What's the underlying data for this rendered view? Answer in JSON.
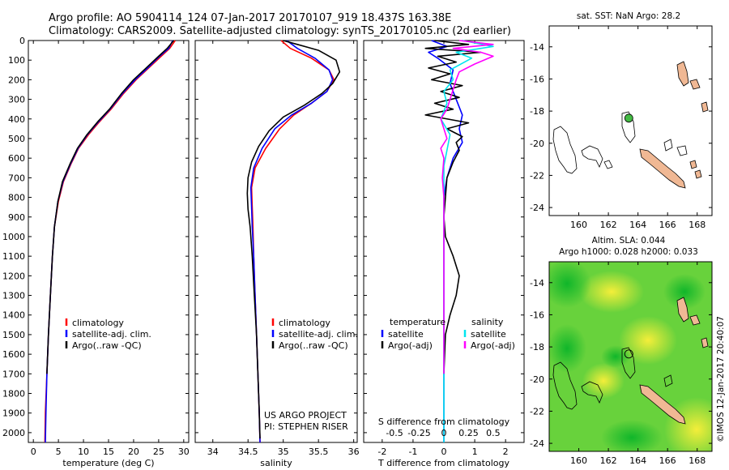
{
  "header": {
    "line1": "Argo profile: AO 5904114_124 07-Jan-2017 20170107_919 18.437S 163.38E",
    "line2": "Climatology: CARS2009. Satellite-adjusted climatology: synTS_20170105.nc (2d earlier)"
  },
  "colors": {
    "climatology": "#ff0000",
    "satellite": "#0000ff",
    "argo": "#000000",
    "sal_satellite": "#00e5ee",
    "sal_argo": "#ff00ff",
    "land": "#f0b894",
    "float": "#44bb44"
  },
  "depth_axis": {
    "ylim": [
      0,
      2050
    ],
    "ticks": [
      0,
      100,
      200,
      300,
      400,
      500,
      600,
      700,
      800,
      900,
      1000,
      1100,
      1200,
      1300,
      1400,
      1500,
      1600,
      1700,
      1800,
      1900,
      2000
    ]
  },
  "chart_data": [
    {
      "id": "temperature",
      "type": "line",
      "xlabel": "temperature (deg C)",
      "xlim": [
        -1,
        31
      ],
      "xticks": [
        0,
        5,
        10,
        15,
        20,
        25,
        30
      ],
      "legend": [
        "climatology",
        "satellite-adj. clim.",
        "Argo(..raw -QC)"
      ],
      "series": [
        {
          "name": "climatology",
          "color": "#ff0000",
          "points": [
            [
              28.3,
              0
            ],
            [
              27.2,
              40
            ],
            [
              25.5,
              80
            ],
            [
              23.0,
              140
            ],
            [
              20.5,
              200
            ],
            [
              18.0,
              270
            ],
            [
              15.5,
              350
            ],
            [
              13.0,
              420
            ],
            [
              11.0,
              480
            ],
            [
              9.0,
              550
            ],
            [
              7.5,
              630
            ],
            [
              6.0,
              720
            ],
            [
              5.0,
              820
            ],
            [
              4.2,
              950
            ],
            [
              3.8,
              1100
            ],
            [
              3.4,
              1300
            ],
            [
              3.0,
              1500
            ],
            [
              2.7,
              1700
            ],
            [
              2.4,
              1900
            ],
            [
              2.3,
              2050
            ]
          ]
        },
        {
          "name": "satellite-adj. clim.",
          "color": "#0000ff",
          "points": [
            [
              27.8,
              0
            ],
            [
              27.0,
              40
            ],
            [
              25.2,
              80
            ],
            [
              22.8,
              140
            ],
            [
              20.3,
              200
            ],
            [
              17.8,
              270
            ],
            [
              15.3,
              350
            ],
            [
              12.8,
              420
            ],
            [
              10.8,
              480
            ],
            [
              8.9,
              550
            ],
            [
              7.4,
              630
            ],
            [
              5.9,
              720
            ],
            [
              4.9,
              820
            ],
            [
              4.2,
              950
            ],
            [
              3.8,
              1100
            ],
            [
              3.4,
              1300
            ],
            [
              3.0,
              1500
            ],
            [
              2.7,
              1700
            ],
            [
              2.5,
              1900
            ],
            [
              2.4,
              2050
            ]
          ]
        },
        {
          "name": "Argo(..raw -QC)",
          "color": "#000000",
          "points": [
            [
              28.0,
              0
            ],
            [
              26.7,
              40
            ],
            [
              25.0,
              80
            ],
            [
              22.5,
              140
            ],
            [
              20.0,
              200
            ],
            [
              17.6,
              270
            ],
            [
              15.2,
              350
            ],
            [
              13.0,
              410
            ],
            [
              10.7,
              480
            ],
            [
              8.8,
              550
            ],
            [
              7.3,
              630
            ],
            [
              5.8,
              720
            ],
            [
              4.9,
              820
            ],
            [
              4.2,
              950
            ],
            [
              3.8,
              1100
            ],
            [
              3.4,
              1300
            ],
            [
              3.0,
              1500
            ],
            [
              2.7,
              1700
            ]
          ]
        }
      ]
    },
    {
      "id": "salinity",
      "type": "line",
      "xlabel": "salinity",
      "xlim": [
        33.75,
        36.05
      ],
      "xticks": [
        34,
        34.5,
        35,
        35.5,
        36
      ],
      "legend": [
        "climatology",
        "satellite-adj. clim.",
        "Argo(..raw -QC)"
      ],
      "annotation": [
        "US ARGO PROJECT",
        "PI: STEPHEN RISER"
      ],
      "series": [
        {
          "name": "climatology",
          "color": "#ff0000",
          "points": [
            [
              34.97,
              0
            ],
            [
              35.1,
              40
            ],
            [
              35.4,
              90
            ],
            [
              35.65,
              150
            ],
            [
              35.72,
              200
            ],
            [
              35.62,
              260
            ],
            [
              35.4,
              320
            ],
            [
              35.15,
              380
            ],
            [
              34.95,
              450
            ],
            [
              34.75,
              550
            ],
            [
              34.6,
              650
            ],
            [
              34.55,
              750
            ],
            [
              34.56,
              850
            ],
            [
              34.57,
              950
            ],
            [
              34.58,
              1100
            ],
            [
              34.6,
              1300
            ],
            [
              34.62,
              1500
            ],
            [
              34.64,
              1700
            ],
            [
              34.66,
              1900
            ],
            [
              34.67,
              2050
            ]
          ]
        },
        {
          "name": "satellite-adj. clim.",
          "color": "#0000ff",
          "points": [
            [
              35.05,
              0
            ],
            [
              35.2,
              40
            ],
            [
              35.45,
              90
            ],
            [
              35.65,
              150
            ],
            [
              35.7,
              200
            ],
            [
              35.62,
              260
            ],
            [
              35.4,
              320
            ],
            [
              35.12,
              380
            ],
            [
              34.88,
              450
            ],
            [
              34.7,
              550
            ],
            [
              34.58,
              650
            ],
            [
              34.54,
              750
            ],
            [
              34.55,
              850
            ],
            [
              34.56,
              950
            ],
            [
              34.58,
              1100
            ],
            [
              34.6,
              1300
            ],
            [
              34.62,
              1500
            ],
            [
              34.64,
              1700
            ],
            [
              34.66,
              1900
            ],
            [
              34.67,
              2050
            ]
          ]
        },
        {
          "name": "Argo(..raw -QC)",
          "color": "#000000",
          "points": [
            [
              35.0,
              0
            ],
            [
              35.2,
              20
            ],
            [
              35.5,
              50
            ],
            [
              35.75,
              100
            ],
            [
              35.8,
              160
            ],
            [
              35.7,
              220
            ],
            [
              35.55,
              270
            ],
            [
              35.3,
              330
            ],
            [
              35.0,
              390
            ],
            [
              34.8,
              460
            ],
            [
              34.65,
              540
            ],
            [
              34.55,
              620
            ],
            [
              34.5,
              700
            ],
            [
              34.49,
              780
            ],
            [
              34.5,
              860
            ],
            [
              34.53,
              950
            ],
            [
              34.56,
              1100
            ],
            [
              34.59,
              1300
            ],
            [
              34.62,
              1500
            ],
            [
              34.64,
              1700
            ],
            [
              34.66,
              1900
            ],
            [
              34.67,
              2030
            ]
          ]
        }
      ]
    },
    {
      "id": "difference",
      "type": "line",
      "xlabel": "T difference from climatology",
      "xlim": [
        -2.6,
        2.6
      ],
      "xticks": [
        -2,
        -1,
        0,
        1,
        2
      ],
      "top_label": "S difference from climatology",
      "top_ticks": [
        {
          "label": "-0.5",
          "t": -1.6
        },
        {
          "label": "-0.25",
          "t": -0.8
        },
        {
          "label": "0",
          "t": 0
        },
        {
          "label": "0.25",
          "t": 0.8
        },
        {
          "label": "0.5",
          "t": 1.6
        }
      ],
      "legend_temperature_title": "temperature",
      "legend_salinity_title": "salinity",
      "legend": [
        "satellite",
        "Argo(-adj)",
        "satellite",
        "Argo(-adj)"
      ],
      "series": [
        {
          "name": "T satellite",
          "color": "#0000ff",
          "points": [
            [
              -0.4,
              0
            ],
            [
              0.1,
              30
            ],
            [
              -0.5,
              60
            ],
            [
              -0.2,
              90
            ],
            [
              0.3,
              150
            ],
            [
              0.2,
              220
            ],
            [
              0.4,
              300
            ],
            [
              0.6,
              380
            ],
            [
              0.5,
              450
            ],
            [
              0.6,
              520
            ],
            [
              0.3,
              600
            ],
            [
              0.1,
              700
            ],
            [
              0.0,
              800
            ],
            [
              0.0,
              1000
            ],
            [
              0.0,
              1500
            ],
            [
              0.0,
              2050
            ]
          ]
        },
        {
          "name": "T Argo(-adj)",
          "color": "#000000",
          "points": [
            [
              -0.3,
              0
            ],
            [
              0.8,
              20
            ],
            [
              -0.6,
              40
            ],
            [
              1.2,
              60
            ],
            [
              -0.2,
              80
            ],
            [
              0.4,
              110
            ],
            [
              -0.5,
              140
            ],
            [
              0.2,
              170
            ],
            [
              -0.4,
              200
            ],
            [
              0.6,
              230
            ],
            [
              -0.1,
              260
            ],
            [
              0.5,
              290
            ],
            [
              -0.3,
              320
            ],
            [
              0.3,
              350
            ],
            [
              -0.6,
              380
            ],
            [
              0.8,
              420
            ],
            [
              0.1,
              450
            ],
            [
              0.6,
              490
            ],
            [
              0.4,
              520
            ],
            [
              0.5,
              560
            ],
            [
              0.3,
              620
            ],
            [
              0.1,
              700
            ],
            [
              0.05,
              800
            ],
            [
              0.0,
              900
            ],
            [
              0.05,
              1000
            ],
            [
              0.3,
              1100
            ],
            [
              0.5,
              1200
            ],
            [
              0.4,
              1300
            ],
            [
              0.2,
              1400
            ],
            [
              0.05,
              1500
            ],
            [
              0.0,
              1700
            ]
          ]
        },
        {
          "name": "S satellite",
          "color": "#00e5ee",
          "points": [
            [
              0.6,
              0
            ],
            [
              1.6,
              30
            ],
            [
              0.4,
              60
            ],
            [
              0.9,
              90
            ],
            [
              0.2,
              150
            ],
            [
              0.3,
              200
            ],
            [
              0.0,
              260
            ],
            [
              0.1,
              320
            ],
            [
              -0.1,
              400
            ],
            [
              0.2,
              480
            ],
            [
              0.1,
              560
            ],
            [
              0.0,
              640
            ],
            [
              0.0,
              800
            ],
            [
              0.0,
              1000
            ],
            [
              0.0,
              1500
            ],
            [
              0.0,
              2050
            ]
          ]
        },
        {
          "name": "S Argo(-adj)",
          "color": "#ff00ff",
          "points": [
            [
              0.5,
              0
            ],
            [
              1.6,
              20
            ],
            [
              0.3,
              40
            ],
            [
              1.2,
              60
            ],
            [
              1.6,
              80
            ],
            [
              1.0,
              120
            ],
            [
              0.5,
              160
            ],
            [
              0.4,
              200
            ],
            [
              0.3,
              250
            ],
            [
              0.2,
              300
            ],
            [
              0.1,
              350
            ],
            [
              -0.1,
              400
            ],
            [
              0.0,
              450
            ],
            [
              0.1,
              500
            ],
            [
              -0.1,
              550
            ],
            [
              0.0,
              600
            ],
            [
              -0.05,
              700
            ],
            [
              0.0,
              800
            ],
            [
              0.0,
              1000
            ],
            [
              0.0,
              1500
            ],
            [
              0.0,
              1700
            ]
          ]
        }
      ]
    },
    {
      "id": "map_sst",
      "type": "map",
      "title": "sat. SST: NaN Argo: 28.2",
      "xlim": [
        158,
        169
      ],
      "ylim": [
        -24.5,
        -12.7
      ],
      "xticks": [
        160,
        162,
        164,
        166,
        168
      ],
      "yticks": [
        -14,
        -16,
        -18,
        -20,
        -22,
        -24
      ],
      "float": [
        163.38,
        -18.437
      ]
    },
    {
      "id": "map_sla",
      "type": "heatmap",
      "title": [
        "Altim. SLA: 0.044",
        "Argo h1000: 0.028 h2000: 0.033"
      ],
      "xlim": [
        158,
        169
      ],
      "ylim": [
        -24.5,
        -12.7
      ],
      "xticks": [
        160,
        162,
        164,
        166,
        168
      ],
      "yticks": [
        -14,
        -16,
        -18,
        -20,
        -22,
        -24
      ],
      "float": [
        163.38,
        -18.437
      ]
    }
  ],
  "footer": {
    "stamp": "©IMOS 12-Jan-2017 20:40:07"
  }
}
